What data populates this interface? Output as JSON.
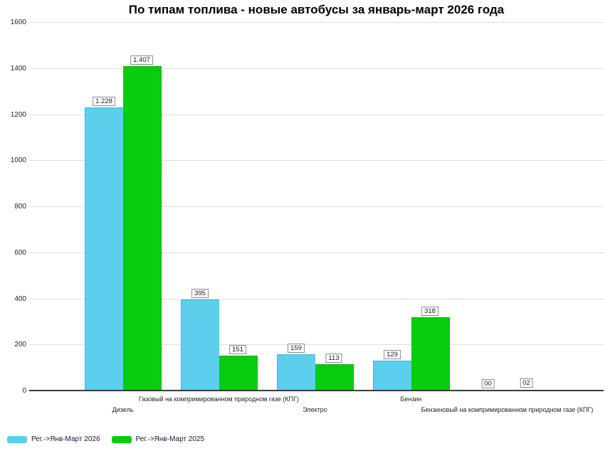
{
  "title": "По типам топлива - новые автобусы за январь-март 2026 года",
  "chart_data": {
    "type": "bar",
    "title": "По типам топлива - новые автобусы за январь-март 2026 года",
    "categories": [
      "Дизель",
      "Газовый на компримированном природном газе (КПГ)",
      "Электро",
      "Бензин",
      "Бензиновый на компримированном природном газе (КПГ)"
    ],
    "series": [
      {
        "name": "Рег.->Янв-Март 2026",
        "color": "#5bcfec",
        "border_color": "#3ab9de",
        "values": [
          1228,
          395,
          159,
          129,
          0
        ],
        "value_labels": [
          "1.228",
          "395",
          "159",
          "129",
          "00"
        ]
      },
      {
        "name": "Рег.->Янв-Март 2025",
        "color": "#07cd0e",
        "border_color": "#06b20c",
        "values": [
          1407,
          151,
          113,
          318,
          2
        ],
        "value_labels": [
          "1.407",
          "151",
          "113",
          "318",
          "02"
        ]
      }
    ],
    "ylim": [
      0,
      1600
    ],
    "yticks": [
      0,
      200,
      400,
      600,
      800,
      1000,
      1200,
      1400,
      1600
    ],
    "grid": true,
    "grid_color": "#dedede",
    "axis_line_color": "#3a3a3a",
    "legend_position": "bottom-left",
    "background": "#ffffff"
  }
}
